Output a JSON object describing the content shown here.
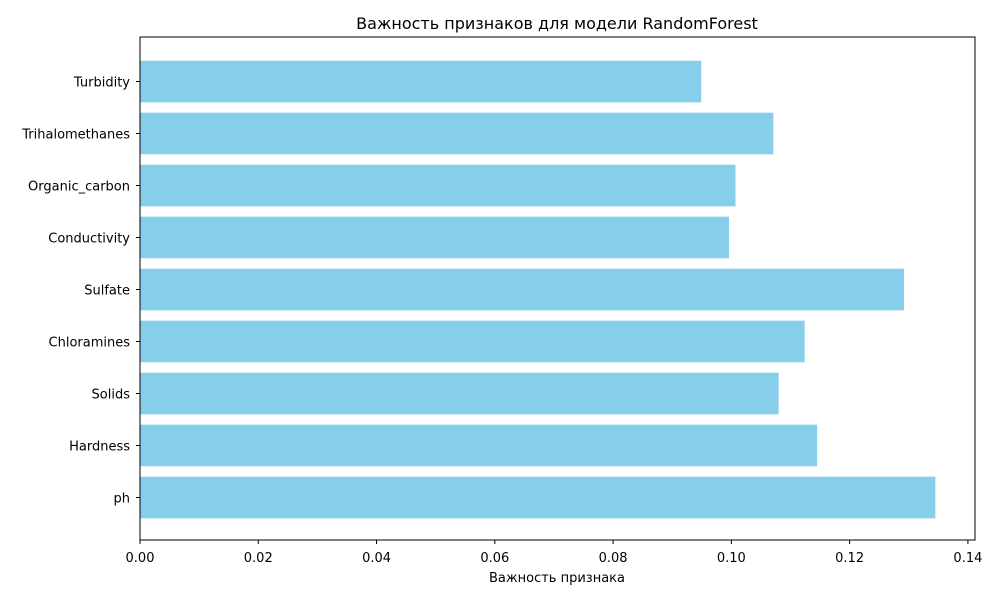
{
  "chart_data": {
    "type": "bar",
    "orientation": "horizontal",
    "title": "Важность признаков для модели RandomForest",
    "xlabel": "Важность признака",
    "ylabel": "",
    "categories": [
      "ph",
      "Hardness",
      "Solids",
      "Chloramines",
      "Sulfate",
      "Conductivity",
      "Organic_carbon",
      "Trihalomethanes",
      "Turbidity"
    ],
    "values": [
      0.1345,
      0.1145,
      0.108,
      0.1124,
      0.1292,
      0.0996,
      0.1007,
      0.1071,
      0.0949
    ],
    "xlim": [
      0,
      0.1412
    ],
    "xticks": [
      "0.00",
      "0.02",
      "0.04",
      "0.06",
      "0.08",
      "0.10",
      "0.12",
      "0.14"
    ],
    "xtick_values": [
      0,
      0.02,
      0.04,
      0.06,
      0.08,
      0.1,
      0.12,
      0.14
    ],
    "grid": false,
    "bar_color": "#87ceeb"
  }
}
